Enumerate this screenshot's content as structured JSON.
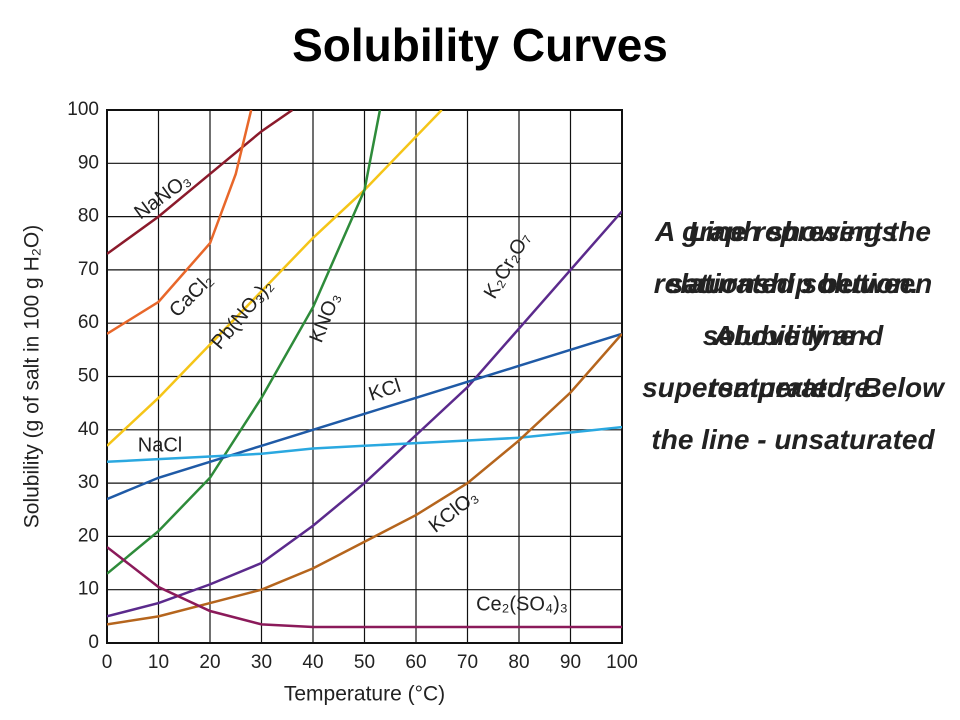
{
  "title": "Solubility Curves",
  "notes": [
    "A graph showing the relationship between solubility and temperature.",
    "Line represents saturated solution. Above line - supersaturated; Below the line - unsaturated"
  ],
  "chart_data": {
    "type": "line",
    "xlabel": "Temperature (°C)",
    "ylabel": "Solubility (g of salt in 100 g H₂O)",
    "xlim": [
      0,
      100
    ],
    "xticks": [
      0,
      10,
      20,
      30,
      40,
      50,
      60,
      70,
      80,
      90,
      100
    ],
    "ylim": [
      0,
      100
    ],
    "yticks": [
      0,
      10,
      20,
      30,
      40,
      50,
      60,
      70,
      80,
      90,
      100
    ],
    "grid": true,
    "series": [
      {
        "name": "NaNO₃",
        "color": "#8b1a2b",
        "x": [
          0,
          10,
          20,
          30,
          36
        ],
        "values": [
          73,
          80,
          88,
          96,
          100
        ]
      },
      {
        "name": "CaCl₂",
        "color": "#e8672a",
        "x": [
          0,
          10,
          20,
          25,
          28
        ],
        "values": [
          58,
          64,
          75,
          88,
          100
        ]
      },
      {
        "name": "Pb(NO₃)₂",
        "color": "#f5c518",
        "x": [
          0,
          10,
          20,
          30,
          40,
          50,
          60,
          65
        ],
        "values": [
          37,
          46,
          56,
          66,
          76,
          85,
          95,
          100
        ]
      },
      {
        "name": "KNO₃",
        "color": "#2e8b3a",
        "x": [
          0,
          10,
          20,
          30,
          40,
          50,
          53
        ],
        "values": [
          13,
          21,
          31,
          46,
          63,
          85,
          100
        ]
      },
      {
        "name": "K₂Cr₂O₇",
        "color": "#5b2a8c",
        "x": [
          0,
          10,
          20,
          30,
          40,
          50,
          60,
          70,
          80,
          90,
          100
        ],
        "values": [
          5,
          7.5,
          11,
          15,
          22,
          30,
          39,
          48,
          59,
          70,
          81
        ]
      },
      {
        "name": "KCl",
        "color": "#1f5aa6",
        "x": [
          0,
          10,
          20,
          30,
          40,
          50,
          60,
          70,
          80,
          90,
          100
        ],
        "values": [
          27,
          31,
          34,
          37,
          40,
          43,
          46,
          49,
          52,
          55,
          58
        ]
      },
      {
        "name": "NaCl",
        "color": "#2aa8e0",
        "x": [
          0,
          10,
          20,
          30,
          40,
          50,
          60,
          70,
          80,
          90,
          100
        ],
        "values": [
          34,
          34.5,
          35,
          35.5,
          36.5,
          37,
          37.5,
          38,
          38.5,
          39.5,
          40.5
        ]
      },
      {
        "name": "KClO₃",
        "color": "#b5651d",
        "x": [
          0,
          10,
          20,
          30,
          40,
          50,
          60,
          70,
          80,
          90,
          100
        ],
        "values": [
          3.5,
          5,
          7.5,
          10,
          14,
          19,
          24,
          30,
          38,
          47,
          58
        ]
      },
      {
        "name": "Ce₂(SO₄)₃",
        "color": "#8b1a5a",
        "x": [
          0,
          10,
          20,
          30,
          40,
          50,
          60,
          70,
          80,
          90,
          100
        ],
        "values": [
          18,
          10.5,
          6,
          3.5,
          3,
          3,
          3,
          3,
          3,
          3,
          3
        ]
      }
    ]
  }
}
